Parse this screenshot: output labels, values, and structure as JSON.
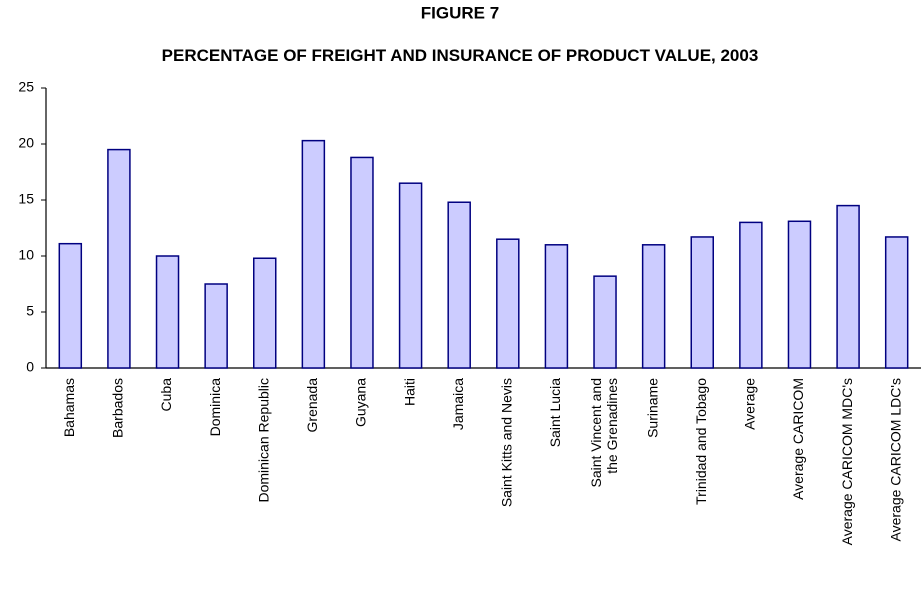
{
  "chart_data": {
    "type": "bar",
    "title": "FIGURE 7",
    "subtitle": "PERCENTAGE OF FREIGHT AND INSURANCE OF PRODUCT VALUE, 2003",
    "categories": [
      "Bahamas",
      "Barbados",
      "Cuba",
      "Dominica",
      "Dominican Republic",
      "Grenada",
      "Guyana",
      "Haiti",
      "Jamaica",
      "Saint Kitts and Nevis",
      "Saint Lucia",
      "Saint Vincent and the Grenadines",
      "Suriname",
      "Trinidad and Tobago",
      "Average",
      "Average CARICOM",
      "Average CARICOM MDC's",
      "Average CARICOM LDC's"
    ],
    "values": [
      11.1,
      19.5,
      10.0,
      7.5,
      9.8,
      20.3,
      18.8,
      16.5,
      14.8,
      11.5,
      11.0,
      8.2,
      11.0,
      11.7,
      13.0,
      13.1,
      14.5,
      11.7
    ],
    "color": "#ccccff",
    "ylim": [
      0,
      25
    ],
    "yticks": [
      0,
      5,
      10,
      15,
      20,
      25
    ],
    "grid": false
  }
}
